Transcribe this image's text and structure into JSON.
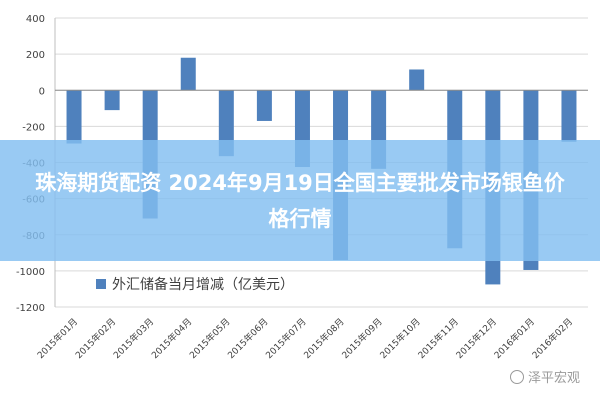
{
  "chart_data": {
    "type": "bar",
    "title": "",
    "xlabel": "",
    "ylabel": "",
    "ylim": [
      -1200,
      400
    ],
    "yticks": [
      400,
      200,
      0,
      -200,
      -400,
      -600,
      -800,
      -1000,
      -1200
    ],
    "grid": true,
    "legend_position": "bottom-left",
    "categories": [
      "2015年01月",
      "2015年02月",
      "2015年03月",
      "2015年04月",
      "2015年05月",
      "2015年06月",
      "2015年07月",
      "2015年08月",
      "2015年09月",
      "2015年10月",
      "2015年11月",
      "2015年12月",
      "2016年01月",
      "2016年02月"
    ],
    "series": [
      {
        "name": "外汇储备当月增减（亿美元）",
        "color": "#4f81bd",
        "values": [
          -295,
          -110,
          -710,
          180,
          -365,
          -170,
          -425,
          -940,
          -435,
          115,
          -875,
          -1075,
          -995,
          -285
        ]
      }
    ]
  },
  "banner": {
    "text": "珠海期货配资 2024年9月19日全国主要批发市场银鱼价格行情"
  },
  "watermark": {
    "text": "泽平宏观"
  }
}
